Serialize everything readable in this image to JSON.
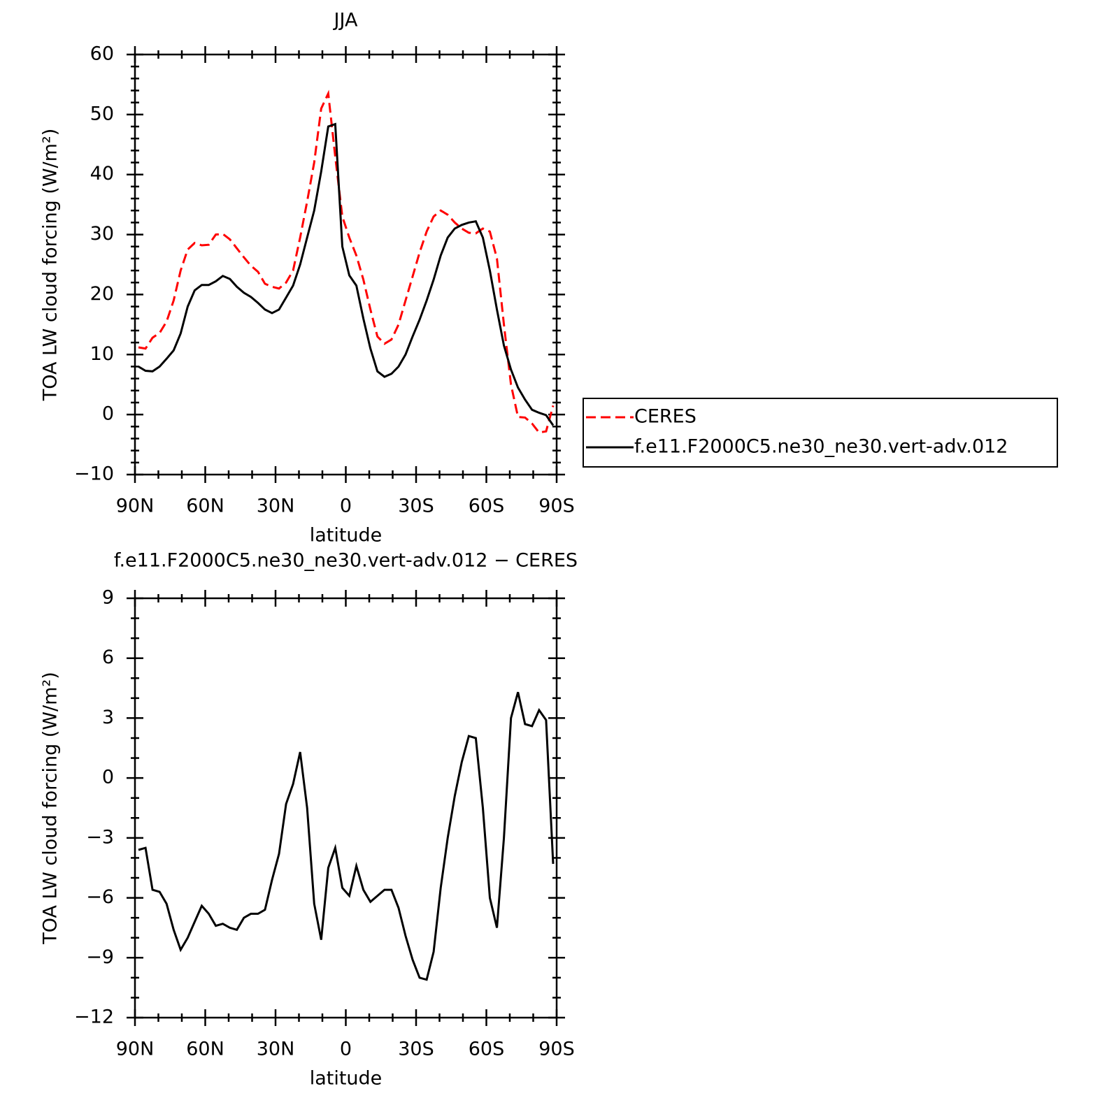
{
  "chart_data": [
    {
      "type": "line",
      "title": "JJA",
      "xlabel": "latitude",
      "ylabel": "TOA LW cloud forcing (W/m²)",
      "x": [
        88.5,
        85.5,
        82.5,
        79.5,
        76.5,
        73.5,
        70.5,
        67.5,
        64.5,
        61.5,
        58.5,
        55.5,
        52.5,
        49.5,
        46.5,
        43.5,
        40.5,
        37.5,
        34.5,
        31.5,
        28.5,
        25.5,
        22.5,
        19.5,
        16.5,
        13.5,
        10.5,
        7.5,
        4.5,
        1.5,
        -1.5,
        -4.5,
        -7.5,
        -10.5,
        -13.5,
        -16.5,
        -19.5,
        -22.5,
        -25.5,
        -28.5,
        -31.5,
        -34.5,
        -37.5,
        -40.5,
        -43.5,
        -46.5,
        -49.5,
        -52.5,
        -55.5,
        -58.5,
        -61.5,
        -64.5,
        -67.5,
        -70.5,
        -73.5,
        -76.5,
        -79.5,
        -82.5,
        -85.5,
        -88.5
      ],
      "series": [
        {
          "name": "CERES",
          "color": "#ff0000",
          "style": "dashed",
          "values": [
            11.2,
            11,
            12.8,
            13.6,
            15.5,
            19,
            24,
            27.5,
            28.6,
            28.2,
            28.3,
            30,
            30.1,
            29.2,
            27.7,
            26.2,
            24.8,
            23.8,
            21.8,
            21.3,
            21,
            22,
            24,
            29.5,
            35.5,
            42,
            51,
            53.5,
            43,
            33,
            29.5,
            26.5,
            22.5,
            17.5,
            13,
            11.8,
            12.5,
            15,
            19,
            23,
            27,
            30.5,
            33,
            34,
            33.3,
            32,
            31,
            30.3,
            30.2,
            31,
            30.5,
            26,
            15,
            5,
            -0.4,
            -0.5,
            -1.5,
            -3,
            -2.8,
            1.5
          ]
        },
        {
          "name": "f.e11.F2000C5.ne30_ne30.vert-adv.012",
          "color": "#000000",
          "style": "solid",
          "values": [
            8,
            7.3,
            7.2,
            8,
            9.3,
            10.7,
            13.5,
            18,
            20.7,
            21.6,
            21.6,
            22.2,
            23.1,
            22.6,
            21.3,
            20.3,
            19.6,
            18.6,
            17.5,
            16.9,
            17.5,
            19.5,
            21.5,
            25,
            29.5,
            34,
            40.5,
            48,
            48.4,
            28,
            23.2,
            21.5,
            16,
            11,
            7.2,
            6.3,
            6.8,
            8,
            10,
            13,
            15.8,
            19,
            22.5,
            26.5,
            29.5,
            31,
            31.6,
            32,
            32.2,
            29.5,
            24,
            17.5,
            11.5,
            7.5,
            4.5,
            2.5,
            0.8,
            0.3,
            -0.1,
            -1.8
          ]
        }
      ],
      "xlim": [
        90,
        -90
      ],
      "xticks": [
        {
          "value": 90,
          "label": "90N"
        },
        {
          "value": 60,
          "label": "60N"
        },
        {
          "value": 30,
          "label": "30N"
        },
        0,
        {
          "value": -30,
          "label": "30S"
        },
        {
          "value": -60,
          "label": "60S"
        },
        {
          "value": -90,
          "label": "90S"
        }
      ],
      "minor_xticks": [
        80,
        70,
        50,
        40,
        20,
        10,
        -10,
        -20,
        -40,
        -50,
        -70,
        -80
      ],
      "ylim": [
        -10,
        60
      ],
      "yticks": [
        {
          "value": -10,
          "label": "−10"
        },
        0,
        10,
        20,
        30,
        40,
        50,
        60
      ],
      "minor_yticks": [
        -8,
        -6,
        -4,
        -2,
        2,
        4,
        6,
        8,
        12,
        14,
        16,
        18,
        22,
        24,
        26,
        28,
        32,
        34,
        36,
        38,
        42,
        44,
        46,
        48,
        52,
        54,
        56,
        58
      ],
      "legend": "right"
    },
    {
      "type": "line",
      "title": "f.e11.F2000C5.ne30_ne30.vert-adv.012 − CERES",
      "xlabel": "latitude",
      "ylabel": "TOA LW cloud forcing (W/m²)",
      "x": [
        88.5,
        85.5,
        82.5,
        79.5,
        76.5,
        73.5,
        70.5,
        67.5,
        64.5,
        61.5,
        58.5,
        55.5,
        52.5,
        49.5,
        46.5,
        43.5,
        40.5,
        37.5,
        34.5,
        31.5,
        28.5,
        25.5,
        22.5,
        19.5,
        16.5,
        13.5,
        10.5,
        7.5,
        4.5,
        1.5,
        -1.5,
        -4.5,
        -7.5,
        -10.5,
        -13.5,
        -16.5,
        -19.5,
        -22.5,
        -25.5,
        -28.5,
        -31.5,
        -34.5,
        -37.5,
        -40.5,
        -43.5,
        -46.5,
        -49.5,
        -52.5,
        -55.5,
        -58.5,
        -61.5,
        -64.5,
        -67.5,
        -70.5,
        -73.5,
        -76.5,
        -79.5,
        -82.5,
        -85.5,
        -88.5
      ],
      "color": "#000000",
      "values": [
        -3.6,
        -3.5,
        -5.6,
        -5.7,
        -6.3,
        -7.6,
        -8.6,
        -8,
        -7.2,
        -6.4,
        -6.8,
        -7.4,
        -7.3,
        -7.5,
        -7.6,
        -7,
        -6.8,
        -6.8,
        -6.6,
        -5.1,
        -3.8,
        -1.3,
        -0.3,
        1.3,
        -1.5,
        -6.3,
        -8.1,
        -4.5,
        -3.5,
        -5.5,
        -5.9,
        -4.4,
        -5.6,
        -6.2,
        -5.9,
        -5.6,
        -5.6,
        -6.5,
        -7.9,
        -9.1,
        -10,
        -10.1,
        -8.7,
        -5.5,
        -3,
        -0.9,
        0.8,
        2.1,
        2,
        -1.5,
        -6,
        -7.5,
        -3,
        3,
        4.3,
        2.7,
        2.6,
        3.4,
        2.9,
        -4.3
      ],
      "xlim": [
        90,
        -90
      ],
      "xticks": [
        {
          "value": 90,
          "label": "90N"
        },
        {
          "value": 60,
          "label": "60N"
        },
        {
          "value": 30,
          "label": "30N"
        },
        0,
        {
          "value": -30,
          "label": "30S"
        },
        {
          "value": -60,
          "label": "60S"
        },
        {
          "value": -90,
          "label": "90S"
        }
      ],
      "minor_xticks": [
        80,
        70,
        50,
        40,
        20,
        10,
        -10,
        -20,
        -40,
        -50,
        -70,
        -80
      ],
      "ylim": [
        -12,
        9
      ],
      "yticks": [
        {
          "value": -12,
          "label": "−12"
        },
        {
          "value": -9,
          "label": "−9"
        },
        {
          "value": -6,
          "label": "−6"
        },
        {
          "value": -3,
          "label": "−3"
        },
        0,
        3,
        6,
        9
      ],
      "minor_yticks": [
        -11,
        -10,
        -8,
        -7,
        -5,
        -4,
        -2,
        -1,
        1,
        2,
        4,
        5,
        7,
        8
      ]
    }
  ]
}
